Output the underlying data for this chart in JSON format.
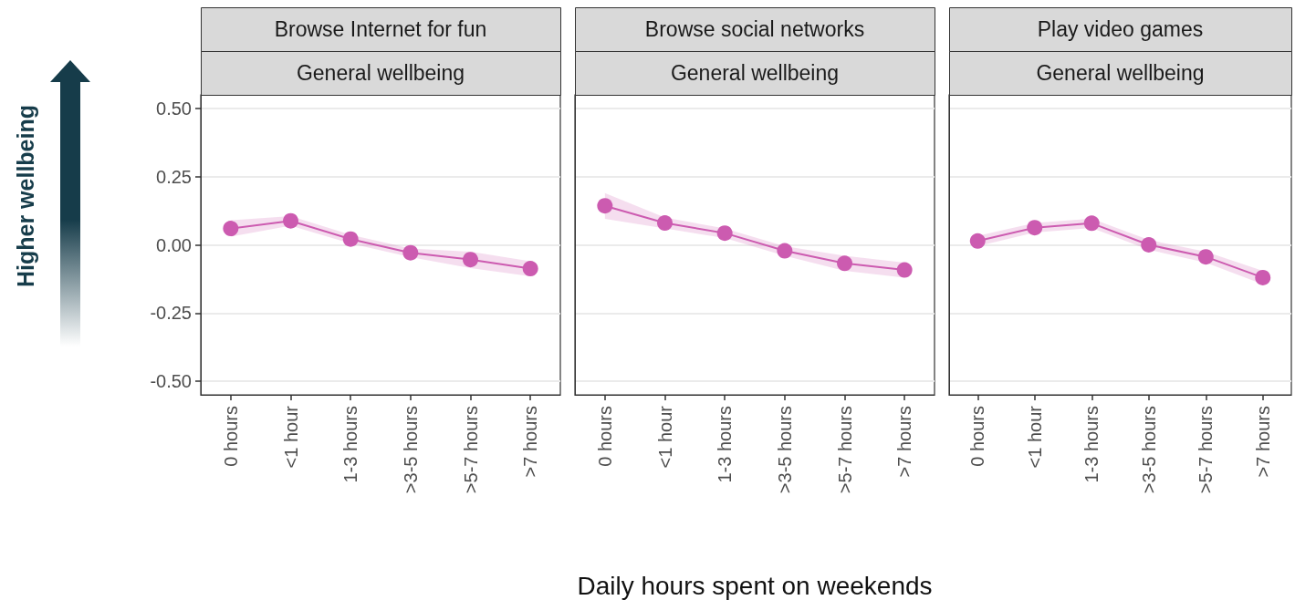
{
  "chart_data": [
    {
      "type": "line",
      "title": "Browse Internet for fun",
      "subtitle": "General wellbeing",
      "annotations": [
        "Higher wellbeing"
      ],
      "categories": [
        "0 hours",
        "<1 hour",
        "1-3 hours",
        ">3-5 hours",
        ">5-7 hours",
        ">7 hours"
      ],
      "series": [
        {
          "color": "#cc5bb0",
          "values": [
            0.06,
            0.088,
            0.021,
            -0.029,
            -0.054,
            -0.087
          ],
          "lower": [
            0.03,
            0.07,
            0.005,
            -0.045,
            -0.085,
            -0.115
          ],
          "upper": [
            0.09,
            0.105,
            0.037,
            -0.013,
            -0.025,
            -0.06
          ]
        }
      ],
      "ylim": [
        -0.55,
        0.55
      ],
      "yticks": [
        {
          "value": -0.5,
          "label": "-0.50"
        },
        {
          "value": -0.25,
          "label": "-0.25"
        },
        {
          "value": 0,
          "label": "0.00"
        },
        {
          "value": 0.25,
          "label": "0.25"
        },
        {
          "value": 0.5,
          "label": "0.50"
        }
      ],
      "grid": "y",
      "marker": "circle",
      "line_style": "solid"
    },
    {
      "type": "line",
      "title": "Browse social networks",
      "subtitle": "General wellbeing",
      "xlabel": "Daily hours spent on weekends",
      "categories": [
        "0 hours",
        "<1 hour",
        "1-3 hours",
        ">3-5 hours",
        ">5-7 hours",
        ">7 hours"
      ],
      "series": [
        {
          "color": "#cc5bb0",
          "values": [
            0.143,
            0.08,
            0.043,
            -0.022,
            -0.068,
            -0.092
          ],
          "lower": [
            0.095,
            0.06,
            0.025,
            -0.04,
            -0.095,
            -0.12
          ],
          "upper": [
            0.19,
            0.1,
            0.06,
            -0.005,
            -0.04,
            -0.065
          ]
        }
      ],
      "ylim": [
        -0.55,
        0.55
      ],
      "yticks": [
        {
          "value": -0.5,
          "label": null
        },
        {
          "value": -0.25,
          "label": null
        },
        {
          "value": 0,
          "label": null
        },
        {
          "value": 0.25,
          "label": null
        },
        {
          "value": 0.5,
          "label": null
        }
      ],
      "grid": "y",
      "marker": "circle",
      "line_style": "solid",
      "tick_labels": "x"
    },
    {
      "type": "line",
      "title": "Play video games",
      "subtitle": "General wellbeing",
      "categories": [
        "0 hours",
        "<1 hour",
        "1-3 hours",
        ">3-5 hours",
        ">5-7 hours",
        ">7 hours"
      ],
      "series": [
        {
          "color": "#cc5bb0",
          "values": [
            0.014,
            0.063,
            0.079,
            0.0,
            -0.044,
            -0.12
          ],
          "lower": [
            -0.005,
            0.045,
            0.062,
            -0.018,
            -0.065,
            -0.145
          ],
          "upper": [
            0.033,
            0.08,
            0.096,
            0.018,
            -0.025,
            -0.095
          ]
        }
      ],
      "ylim": [
        -0.55,
        0.55
      ],
      "yticks": [
        {
          "value": -0.5,
          "label": null
        },
        {
          "value": -0.25,
          "label": null
        },
        {
          "value": 0,
          "label": null
        },
        {
          "value": 0.25,
          "label": null
        },
        {
          "value": 0.5,
          "label": null
        }
      ],
      "grid": "y",
      "marker": "circle",
      "line_style": "solid",
      "tick_labels": "x"
    }
  ]
}
